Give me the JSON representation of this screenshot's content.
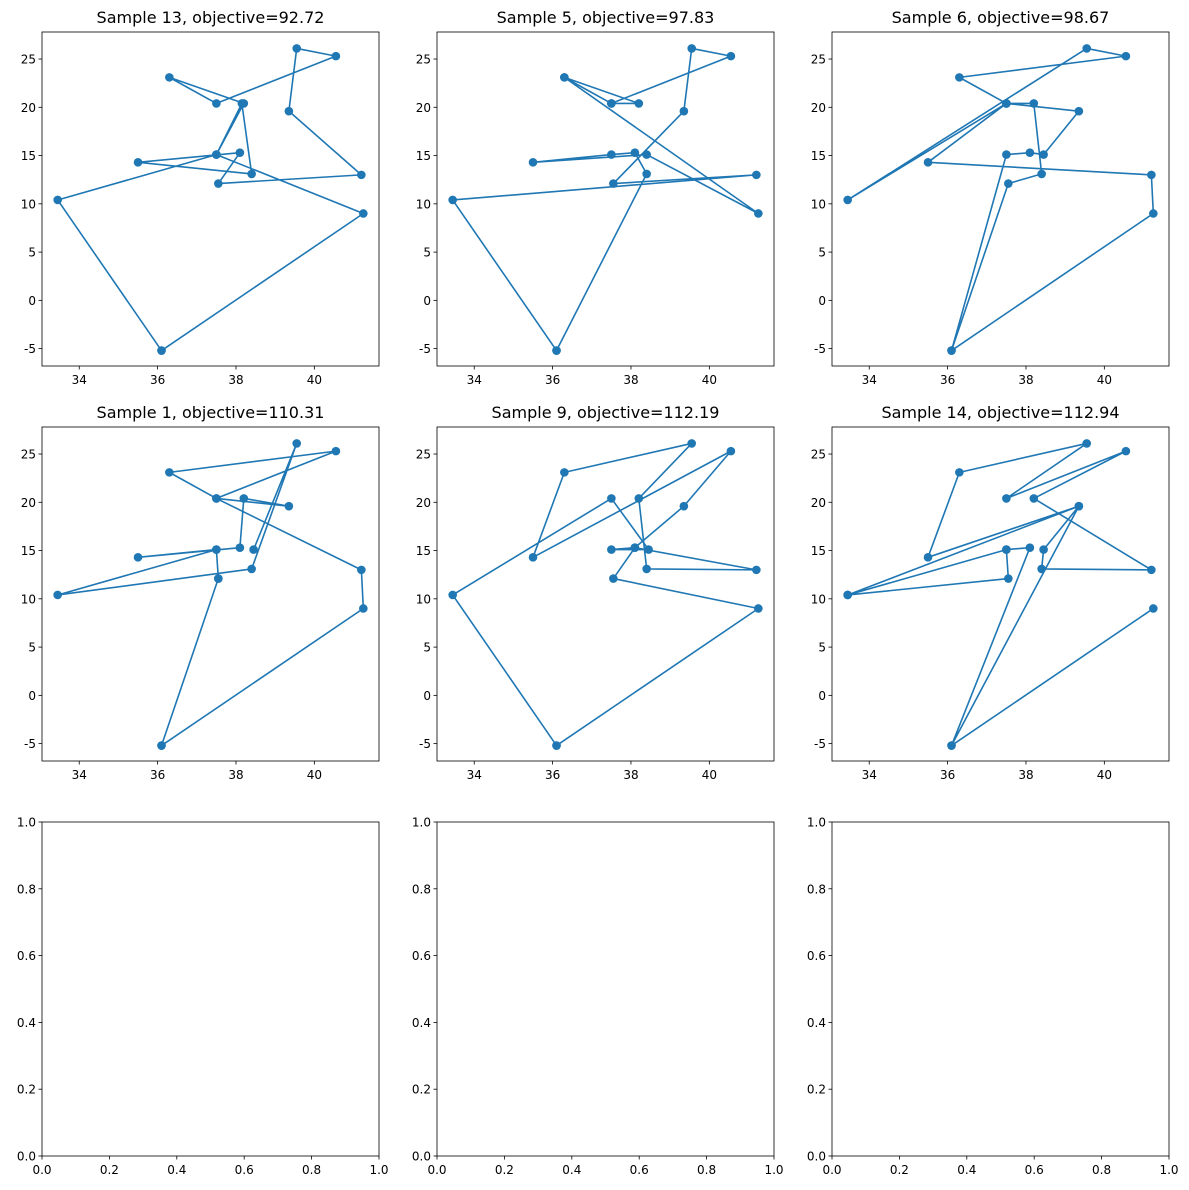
{
  "colors": {
    "series": "#1f77b4",
    "axis": "#000000",
    "background": "#ffffff"
  },
  "chart_data": [
    {
      "type": "line",
      "title": "Sample 13, objective=92.72",
      "xlim": [
        33.05,
        41.65
      ],
      "ylim": [
        -6.8,
        27.8
      ],
      "xticks": [
        34,
        36,
        38,
        40
      ],
      "yticks": [
        -5,
        0,
        5,
        10,
        15,
        20,
        25
      ],
      "x": [
        36.1,
        33.45,
        37.5,
        38.15,
        38.4,
        35.5,
        38.1,
        37.55,
        41.2,
        39.35,
        39.55,
        40.55,
        37.5,
        36.3,
        38.2,
        37.5,
        41.25,
        36.1
      ],
      "y": [
        -5.2,
        10.4,
        15.1,
        20.4,
        13.1,
        14.3,
        15.3,
        12.1,
        13.0,
        19.6,
        26.1,
        25.3,
        20.4,
        23.1,
        20.4,
        15.1,
        9.0,
        -5.2
      ]
    },
    {
      "type": "line",
      "title": "Sample 5, objective=97.83",
      "xlim": [
        33.05,
        41.65
      ],
      "ylim": [
        -6.8,
        27.8
      ],
      "xticks": [
        34,
        36,
        38,
        40
      ],
      "yticks": [
        -5,
        0,
        5,
        10,
        15,
        20,
        25
      ],
      "x": [
        36.1,
        33.45,
        41.2,
        37.55,
        39.35,
        39.55,
        40.55,
        37.5,
        36.3,
        38.2,
        37.5,
        36.3,
        41.25,
        38.4,
        35.5,
        37.5,
        38.1,
        38.4,
        36.1
      ],
      "y": [
        -5.2,
        10.4,
        13.0,
        12.1,
        19.6,
        26.1,
        25.3,
        20.4,
        23.1,
        20.4,
        20.4,
        23.1,
        9.0,
        15.1,
        14.3,
        15.1,
        15.3,
        13.1,
        -5.2
      ]
    },
    {
      "type": "line",
      "title": "Sample 6, objective=98.67",
      "xlim": [
        33.05,
        41.65
      ],
      "ylim": [
        -6.8,
        27.8
      ],
      "xticks": [
        34,
        36,
        38,
        40
      ],
      "yticks": [
        -5,
        0,
        5,
        10,
        15,
        20,
        25
      ],
      "x": [
        36.1,
        37.5,
        38.1,
        38.45,
        39.35,
        37.5,
        35.5,
        41.2,
        41.25,
        36.1,
        37.55,
        38.4,
        38.2,
        37.5,
        33.45,
        39.55,
        40.55,
        36.3,
        37.5
      ],
      "y": [
        -5.2,
        15.1,
        15.3,
        15.1,
        19.6,
        20.4,
        14.3,
        13.0,
        9.0,
        -5.2,
        12.1,
        13.1,
        20.4,
        20.4,
        10.4,
        26.1,
        25.3,
        23.1,
        20.4
      ]
    },
    {
      "type": "line",
      "title": "Sample 1, objective=110.31",
      "xlim": [
        33.05,
        41.65
      ],
      "ylim": [
        -6.8,
        27.8
      ],
      "xticks": [
        34,
        36,
        38,
        40
      ],
      "yticks": [
        -5,
        0,
        5,
        10,
        15,
        20,
        25
      ],
      "x": [
        36.1,
        37.55,
        37.5,
        35.5,
        38.1,
        38.2,
        39.35,
        37.5,
        36.3,
        40.55,
        37.5,
        41.2,
        41.25,
        36.1,
        37.55,
        37.5,
        33.45,
        38.4,
        39.55,
        38.45
      ],
      "y": [
        -5.2,
        12.1,
        15.1,
        14.3,
        15.3,
        20.4,
        19.6,
        20.4,
        23.1,
        25.3,
        20.4,
        13.0,
        9.0,
        -5.2,
        12.1,
        15.1,
        10.4,
        13.1,
        26.1,
        15.1
      ]
    },
    {
      "type": "line",
      "title": "Sample 9, objective=112.19",
      "xlim": [
        33.05,
        41.65
      ],
      "ylim": [
        -6.8,
        27.8
      ],
      "xticks": [
        34,
        36,
        38,
        40
      ],
      "yticks": [
        -5,
        0,
        5,
        10,
        15,
        20,
        25
      ],
      "x": [
        36.1,
        33.45,
        37.5,
        38.45,
        37.5,
        38.1,
        41.2,
        38.4,
        38.2,
        39.55,
        36.3,
        35.5,
        40.55,
        39.35,
        38.1,
        37.55,
        41.25,
        36.1
      ],
      "y": [
        -5.2,
        10.4,
        20.4,
        15.1,
        15.1,
        15.3,
        13.0,
        13.1,
        20.4,
        26.1,
        23.1,
        14.3,
        25.3,
        19.6,
        15.3,
        12.1,
        9.0,
        -5.2
      ]
    },
    {
      "type": "line",
      "title": "Sample 14, objective=112.94",
      "xlim": [
        33.05,
        41.65
      ],
      "ylim": [
        -6.8,
        27.8
      ],
      "xticks": [
        34,
        36,
        38,
        40
      ],
      "yticks": [
        -5,
        0,
        5,
        10,
        15,
        20,
        25
      ],
      "x": [
        36.1,
        38.1,
        37.5,
        33.45,
        37.55,
        37.5,
        33.45,
        39.35,
        35.5,
        36.3,
        39.55,
        37.5,
        40.55,
        38.2,
        41.2,
        38.4,
        38.45,
        39.35,
        36.1,
        41.25
      ],
      "y": [
        -5.2,
        15.3,
        15.1,
        10.4,
        12.1,
        15.1,
        10.4,
        19.6,
        14.3,
        23.1,
        26.1,
        20.4,
        25.3,
        20.4,
        13.0,
        13.1,
        15.1,
        19.6,
        -5.2,
        9.0
      ]
    },
    {
      "type": "line",
      "title": "",
      "xlim": [
        0,
        1
      ],
      "ylim": [
        0,
        1
      ],
      "xticks": [
        0.0,
        0.2,
        0.4,
        0.6,
        0.8,
        1.0
      ],
      "yticks": [
        0.0,
        0.2,
        0.4,
        0.6,
        0.8,
        1.0
      ],
      "x": [],
      "y": []
    },
    {
      "type": "line",
      "title": "",
      "xlim": [
        0,
        1
      ],
      "ylim": [
        0,
        1
      ],
      "xticks": [
        0.0,
        0.2,
        0.4,
        0.6,
        0.8,
        1.0
      ],
      "yticks": [
        0.0,
        0.2,
        0.4,
        0.6,
        0.8,
        1.0
      ],
      "x": [],
      "y": []
    },
    {
      "type": "line",
      "title": "",
      "xlim": [
        0,
        1
      ],
      "ylim": [
        0,
        1
      ],
      "xticks": [
        0.0,
        0.2,
        0.4,
        0.6,
        0.8,
        1.0
      ],
      "yticks": [
        0.0,
        0.2,
        0.4,
        0.6,
        0.8,
        1.0
      ],
      "x": [],
      "y": []
    }
  ]
}
